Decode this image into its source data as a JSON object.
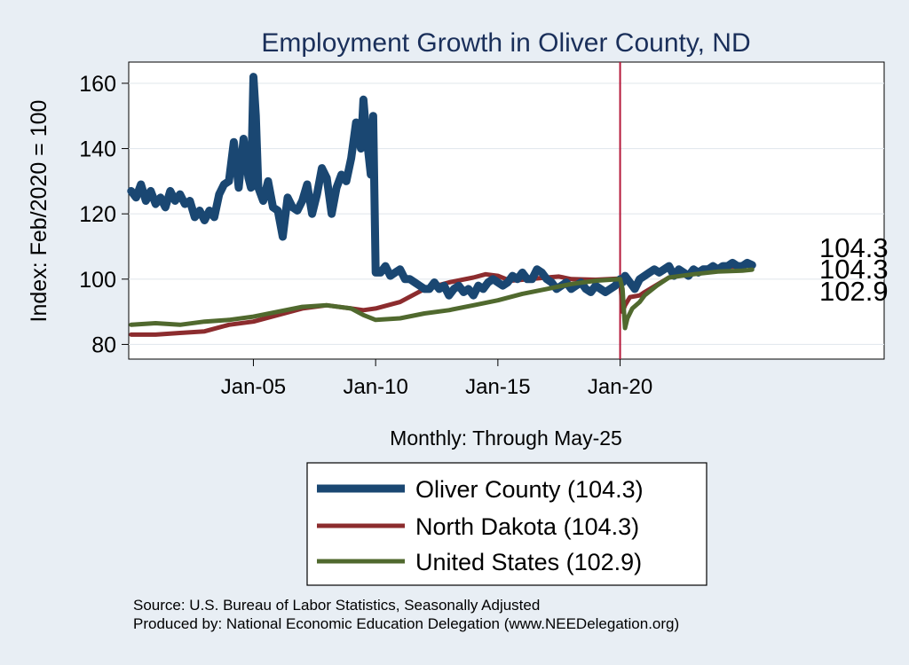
{
  "chart_data": {
    "type": "line",
    "title": "Employment Growth in Oliver  County, ND",
    "xlabel": "Monthly: Through May-25",
    "ylabel": "Index: Feb/2020 = 100",
    "xlim": [
      1999.9,
      2030.8
    ],
    "ylim": [
      75.5,
      166.5
    ],
    "x_ticks": [
      {
        "value": 2005.0,
        "label": "Jan-05"
      },
      {
        "value": 2010.0,
        "label": "Jan-10"
      },
      {
        "value": 2015.0,
        "label": "Jan-15"
      },
      {
        "value": 2020.0,
        "label": "Jan-20"
      }
    ],
    "y_ticks": [
      80,
      100,
      120,
      140,
      160
    ],
    "reference_line": {
      "x": 2020.0,
      "color": "#b5183a"
    },
    "end_labels": [
      {
        "text": "104.3"
      },
      {
        "text": "104.3"
      },
      {
        "text": "102.9"
      }
    ],
    "legend": {
      "entries": [
        "Oliver  County (104.3)",
        "North Dakota (104.3)",
        "United States (102.9)"
      ]
    },
    "series": [
      {
        "name": "Oliver  County",
        "color": "#1a4772",
        "x": [
          2000.0,
          2000.2,
          2000.4,
          2000.6,
          2000.8,
          2001.0,
          2001.2,
          2001.4,
          2001.6,
          2001.8,
          2002.0,
          2002.2,
          2002.4,
          2002.6,
          2002.8,
          2003.0,
          2003.2,
          2003.4,
          2003.6,
          2003.8,
          2004.0,
          2004.2,
          2004.4,
          2004.6,
          2004.8,
          2004.9,
          2005.0,
          2005.1,
          2005.2,
          2005.4,
          2005.6,
          2005.8,
          2006.0,
          2006.2,
          2006.4,
          2006.6,
          2006.8,
          2007.0,
          2007.2,
          2007.4,
          2007.6,
          2007.8,
          2008.0,
          2008.2,
          2008.4,
          2008.6,
          2008.8,
          2009.0,
          2009.2,
          2009.4,
          2009.5,
          2009.6,
          2009.8,
          2009.9,
          2010.0,
          2010.2,
          2010.4,
          2010.6,
          2010.8,
          2011.0,
          2011.2,
          2011.4,
          2011.6,
          2011.8,
          2012.0,
          2012.2,
          2012.4,
          2012.6,
          2012.8,
          2013.0,
          2013.2,
          2013.4,
          2013.6,
          2013.8,
          2014.0,
          2014.2,
          2014.4,
          2014.6,
          2014.8,
          2015.0,
          2015.2,
          2015.4,
          2015.6,
          2015.8,
          2016.0,
          2016.2,
          2016.4,
          2016.6,
          2016.8,
          2017.0,
          2017.2,
          2017.4,
          2017.6,
          2017.8,
          2018.0,
          2018.2,
          2018.4,
          2018.6,
          2018.8,
          2019.0,
          2019.2,
          2019.4,
          2019.6,
          2019.8,
          2020.0,
          2020.1,
          2020.2,
          2020.4,
          2020.6,
          2020.8,
          2021.0,
          2021.2,
          2021.4,
          2021.6,
          2021.8,
          2022.0,
          2022.2,
          2022.4,
          2022.6,
          2022.8,
          2023.0,
          2023.2,
          2023.4,
          2023.6,
          2023.8,
          2024.0,
          2024.2,
          2024.4,
          2024.6,
          2024.8,
          2025.0,
          2025.2,
          2025.4
        ],
        "values": [
          127,
          125,
          129,
          124,
          127,
          123,
          125,
          122,
          127,
          124,
          126,
          123,
          124,
          119,
          121,
          118,
          121,
          119,
          126,
          129,
          130,
          142,
          128,
          143,
          131,
          128,
          162,
          150,
          128,
          124,
          130,
          122,
          121,
          113,
          125,
          122,
          121,
          124,
          129,
          120,
          126,
          134,
          131,
          120,
          128,
          132,
          130,
          137,
          148,
          140,
          155,
          146,
          132,
          150,
          102,
          102,
          104,
          101,
          102,
          103,
          100,
          100,
          99,
          98,
          97,
          97,
          99,
          97,
          98,
          95,
          97,
          98,
          96,
          97,
          95,
          98,
          97,
          99,
          100,
          99,
          98,
          99,
          101,
          100,
          102,
          100,
          100,
          103,
          102,
          100,
          99,
          97,
          98,
          99,
          97,
          98,
          99,
          97,
          96,
          98,
          97,
          96,
          97,
          98,
          100,
          99,
          101,
          99,
          97,
          100,
          101,
          102,
          103,
          102,
          103,
          104,
          101,
          103,
          102,
          101,
          103,
          102,
          103,
          103,
          104,
          103,
          104,
          104,
          105,
          104,
          104,
          105,
          104.3
        ]
      },
      {
        "name": "North Dakota",
        "color": "#8c2c2e",
        "x": [
          2000.0,
          2001.0,
          2002.0,
          2003.0,
          2004.0,
          2005.0,
          2006.0,
          2007.0,
          2008.0,
          2009.0,
          2009.5,
          2010.0,
          2011.0,
          2012.0,
          2013.0,
          2014.0,
          2014.5,
          2015.0,
          2015.5,
          2016.0,
          2017.0,
          2017.5,
          2018.0,
          2019.0,
          2020.0,
          2020.1,
          2020.2,
          2020.4,
          2020.8,
          2021.0,
          2022.0,
          2023.0,
          2024.0,
          2025.4
        ],
        "values": [
          83,
          83,
          83.5,
          84,
          86,
          87,
          89,
          91,
          92,
          91,
          90.5,
          91,
          93,
          97,
          99,
          100.5,
          101.5,
          101,
          99.5,
          99.8,
          100.5,
          100.8,
          100,
          99.8,
          100.2,
          90,
          92,
          94.5,
          95,
          96,
          100.5,
          102,
          103.5,
          104.3
        ]
      },
      {
        "name": "United States",
        "color": "#50692e",
        "x": [
          2000.0,
          2001.0,
          2002.0,
          2003.0,
          2004.0,
          2005.0,
          2006.0,
          2007.0,
          2008.0,
          2009.0,
          2009.5,
          2010.0,
          2011.0,
          2012.0,
          2013.0,
          2014.0,
          2015.0,
          2016.0,
          2017.0,
          2018.0,
          2019.0,
          2020.0,
          2020.1,
          2020.2,
          2020.3,
          2020.5,
          2020.8,
          2021.0,
          2021.5,
          2022.0,
          2023.0,
          2024.0,
          2025.0,
          2025.4
        ],
        "values": [
          86,
          86.5,
          86,
          87,
          87.5,
          88.5,
          90,
          91.5,
          92,
          91,
          89,
          87.5,
          88,
          89.5,
          90.5,
          92,
          93.5,
          95.5,
          97,
          98.5,
          99.5,
          100,
          97,
          85,
          88,
          91,
          93,
          95,
          98,
          100.5,
          101.5,
          102.3,
          102.6,
          102.9
        ]
      }
    ]
  }
}
